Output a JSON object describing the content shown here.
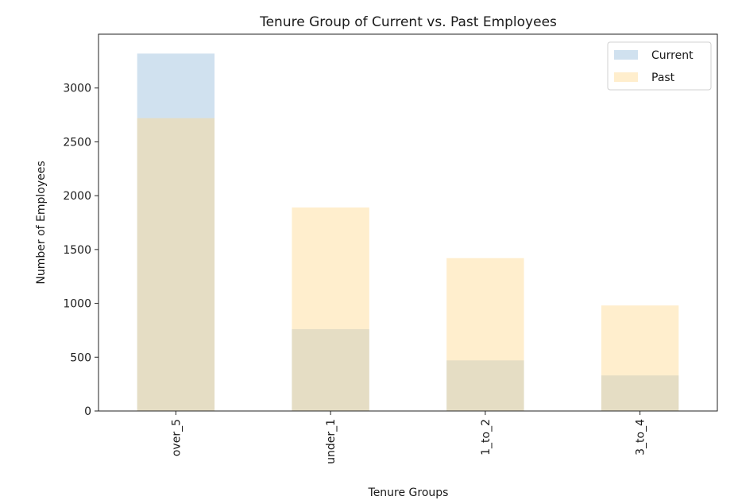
{
  "chart_data": {
    "type": "bar",
    "title": "Tenure Group of Current vs. Past Employees",
    "xlabel": "Tenure Groups",
    "ylabel": "Number of Employees",
    "categories": [
      "over_5",
      "under_1",
      "1_to_2",
      "3_to_4"
    ],
    "series": [
      {
        "name": "Current",
        "values": [
          3320,
          760,
          470,
          330
        ],
        "color": "#a9c9e2",
        "alpha": 0.55
      },
      {
        "name": "Past",
        "values": [
          2720,
          1890,
          1420,
          980
        ],
        "color": "#ffd991",
        "alpha": 0.45
      }
    ],
    "yticks": [
      0,
      500,
      1000,
      1500,
      2000,
      2500,
      3000
    ],
    "ylim": [
      0,
      3500
    ],
    "grid": false,
    "legend": "top-right",
    "overlap": true
  }
}
